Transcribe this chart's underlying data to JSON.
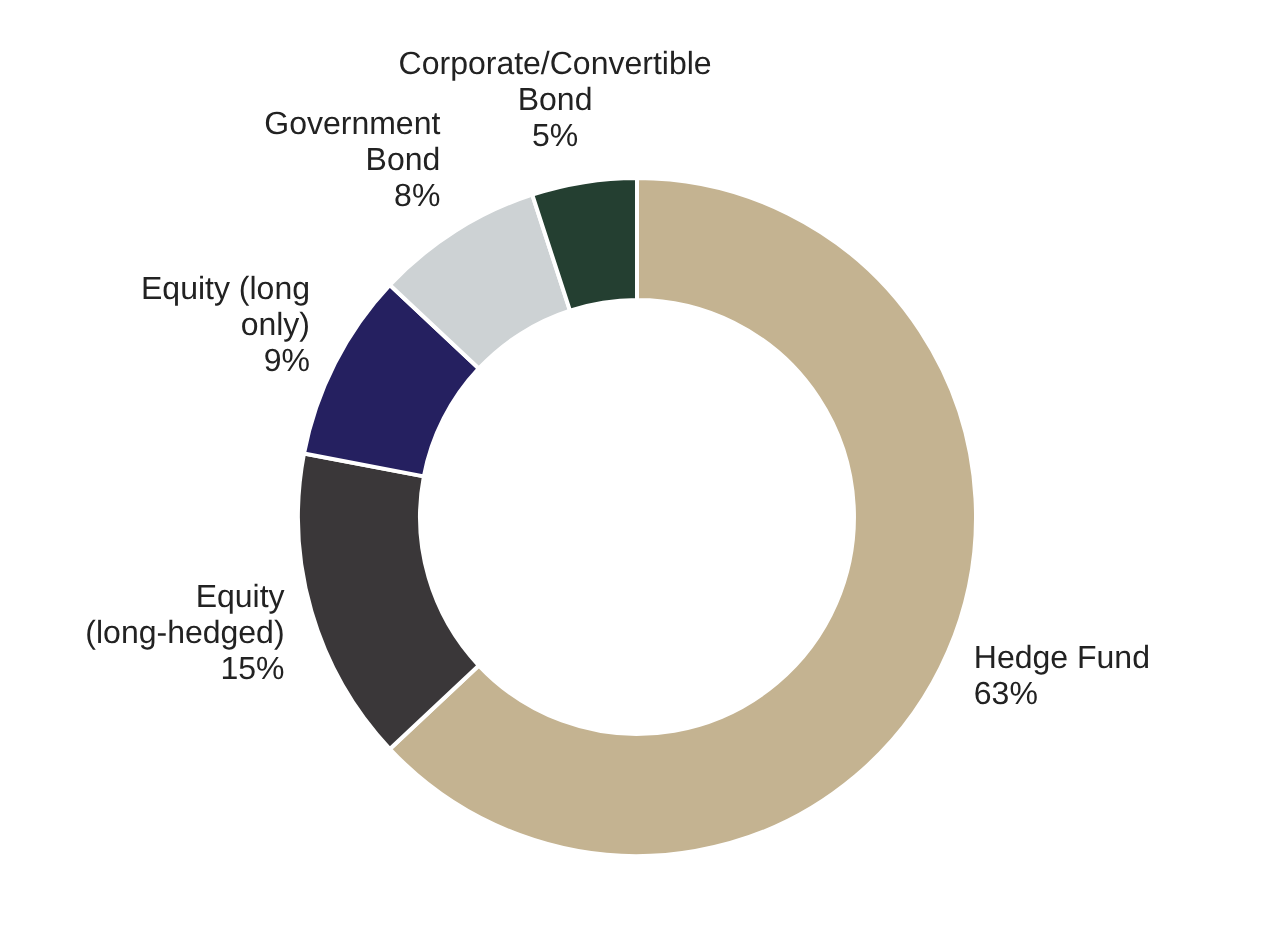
{
  "chart_data": {
    "type": "donut",
    "categories": [
      "Hedge Fund",
      "Equity (long-hedged)",
      "Equity (long only)",
      "Government Bond",
      "Corporate/Convertible Bond"
    ],
    "values": [
      63,
      15,
      9,
      8,
      5
    ],
    "colors": [
      "#c4b391",
      "#3a3739",
      "#252060",
      "#cdd2d4",
      "#243f31"
    ],
    "value_labels": [
      "63%",
      "15%",
      "9%",
      "8%",
      "5%"
    ],
    "legend": false
  }
}
